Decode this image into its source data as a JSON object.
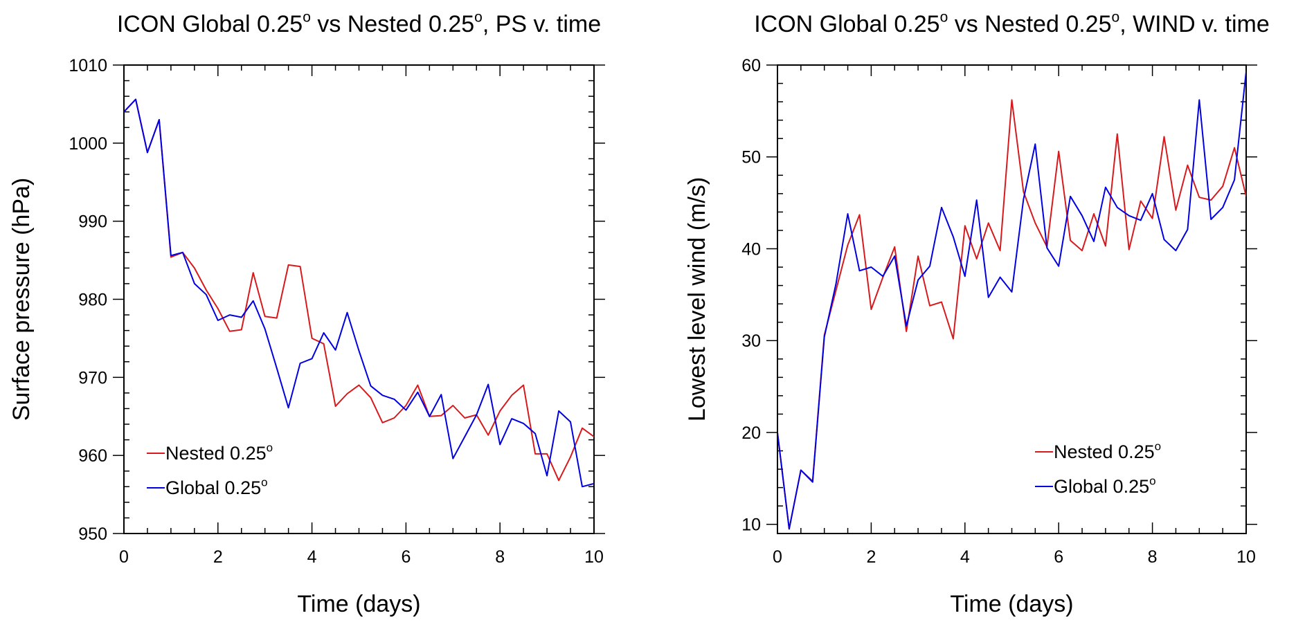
{
  "chart_data": [
    {
      "type": "line",
      "title": "ICON Global 0.25° vs Nested 0.25°, PS v. time",
      "xlabel": "Time (days)",
      "ylabel": "Surface pressure (hPa)",
      "xlim": [
        0,
        10
      ],
      "ylim": [
        950,
        1010
      ],
      "xticks": [
        0,
        2,
        4,
        6,
        8,
        10
      ],
      "yticks": [
        950,
        960,
        970,
        980,
        990,
        1000,
        1010
      ],
      "legend_position": "bottom-left",
      "x": [
        0,
        0.25,
        0.5,
        0.75,
        1,
        1.25,
        1.5,
        1.75,
        2,
        2.25,
        2.5,
        2.75,
        3,
        3.25,
        3.5,
        3.75,
        4,
        4.25,
        4.5,
        4.75,
        5,
        5.25,
        5.5,
        5.75,
        6,
        6.25,
        6.5,
        6.75,
        7,
        7.25,
        7.5,
        7.75,
        8,
        8.25,
        8.5,
        8.75,
        9,
        9.25,
        9.5,
        9.75,
        10
      ],
      "series": [
        {
          "name": "Nested 0.25°",
          "color": "#d7191c",
          "values": [
            1004.0,
            1005.6,
            998.8,
            1003.0,
            985.4,
            986.0,
            984.0,
            981.2,
            978.8,
            975.9,
            976.1,
            983.4,
            977.8,
            977.6,
            984.4,
            984.2,
            975.0,
            974.3,
            966.3,
            967.9,
            969.0,
            967.4,
            964.2,
            964.8,
            966.4,
            969.0,
            965.0,
            965.1,
            966.4,
            964.8,
            965.2,
            962.6,
            965.7,
            967.7,
            969.0,
            960.2,
            960.2,
            956.8,
            959.8,
            963.5,
            962.4
          ]
        },
        {
          "name": "Global 0.25°",
          "color": "#0000e0",
          "values": [
            1004.0,
            1005.6,
            998.8,
            1003.0,
            985.6,
            986.0,
            982.0,
            980.6,
            977.3,
            978.0,
            977.7,
            979.8,
            976.2,
            971.2,
            966.1,
            971.8,
            972.4,
            975.7,
            973.5,
            978.3,
            973.4,
            968.9,
            967.7,
            967.2,
            965.8,
            968.1,
            965.0,
            967.8,
            959.6,
            962.4,
            965.2,
            969.1,
            961.4,
            964.7,
            964.1,
            962.8,
            957.4,
            965.7,
            964.3,
            956.0,
            956.4
          ]
        }
      ]
    },
    {
      "type": "line",
      "title": "ICON Global 0.25° vs Nested 0.25°, WIND v. time",
      "xlabel": "Time (days)",
      "ylabel": "Lowest level wind (m/s)",
      "xlim": [
        0,
        10
      ],
      "ylim": [
        9,
        60
      ],
      "xticks": [
        0,
        2,
        4,
        6,
        8,
        10
      ],
      "yticks": [
        10,
        20,
        30,
        40,
        50,
        60
      ],
      "legend_position": "bottom-right",
      "x": [
        0,
        0.25,
        0.5,
        0.75,
        1,
        1.25,
        1.5,
        1.75,
        2,
        2.25,
        2.5,
        2.75,
        3,
        3.25,
        3.5,
        3.75,
        4,
        4.25,
        4.5,
        4.75,
        5,
        5.25,
        5.5,
        5.75,
        6,
        6.25,
        6.5,
        6.75,
        7,
        7.25,
        7.5,
        7.75,
        8,
        8.25,
        8.5,
        8.75,
        9,
        9.25,
        9.5,
        9.75,
        10
      ],
      "series": [
        {
          "name": "Nested 0.25°",
          "color": "#d7191c",
          "values": [
            20.0,
            9.5,
            15.9,
            14.7,
            30.6,
            35.5,
            40.4,
            43.7,
            33.4,
            36.9,
            40.2,
            31.0,
            39.2,
            33.8,
            34.2,
            30.2,
            42.5,
            38.9,
            42.8,
            39.8,
            56.2,
            46.2,
            42.8,
            40.2,
            50.6,
            40.9,
            39.8,
            43.8,
            40.3,
            52.5,
            39.9,
            45.2,
            43.3,
            52.2,
            44.2,
            49.1,
            45.6,
            45.3,
            46.8,
            51.0,
            45.7
          ]
        },
        {
          "name": "Global 0.25°",
          "color": "#0000e0",
          "values": [
            20.0,
            9.5,
            15.9,
            14.6,
            30.4,
            36.2,
            43.8,
            37.6,
            38.0,
            37.0,
            39.2,
            31.6,
            36.6,
            38.1,
            44.5,
            41.3,
            37.0,
            45.3,
            34.7,
            36.9,
            35.3,
            45.4,
            51.4,
            40.1,
            38.1,
            45.7,
            43.6,
            40.8,
            46.7,
            44.5,
            43.6,
            43.1,
            46.0,
            41.0,
            39.8,
            42.1,
            56.2,
            43.2,
            44.5,
            47.5,
            59.3
          ]
        }
      ]
    }
  ]
}
